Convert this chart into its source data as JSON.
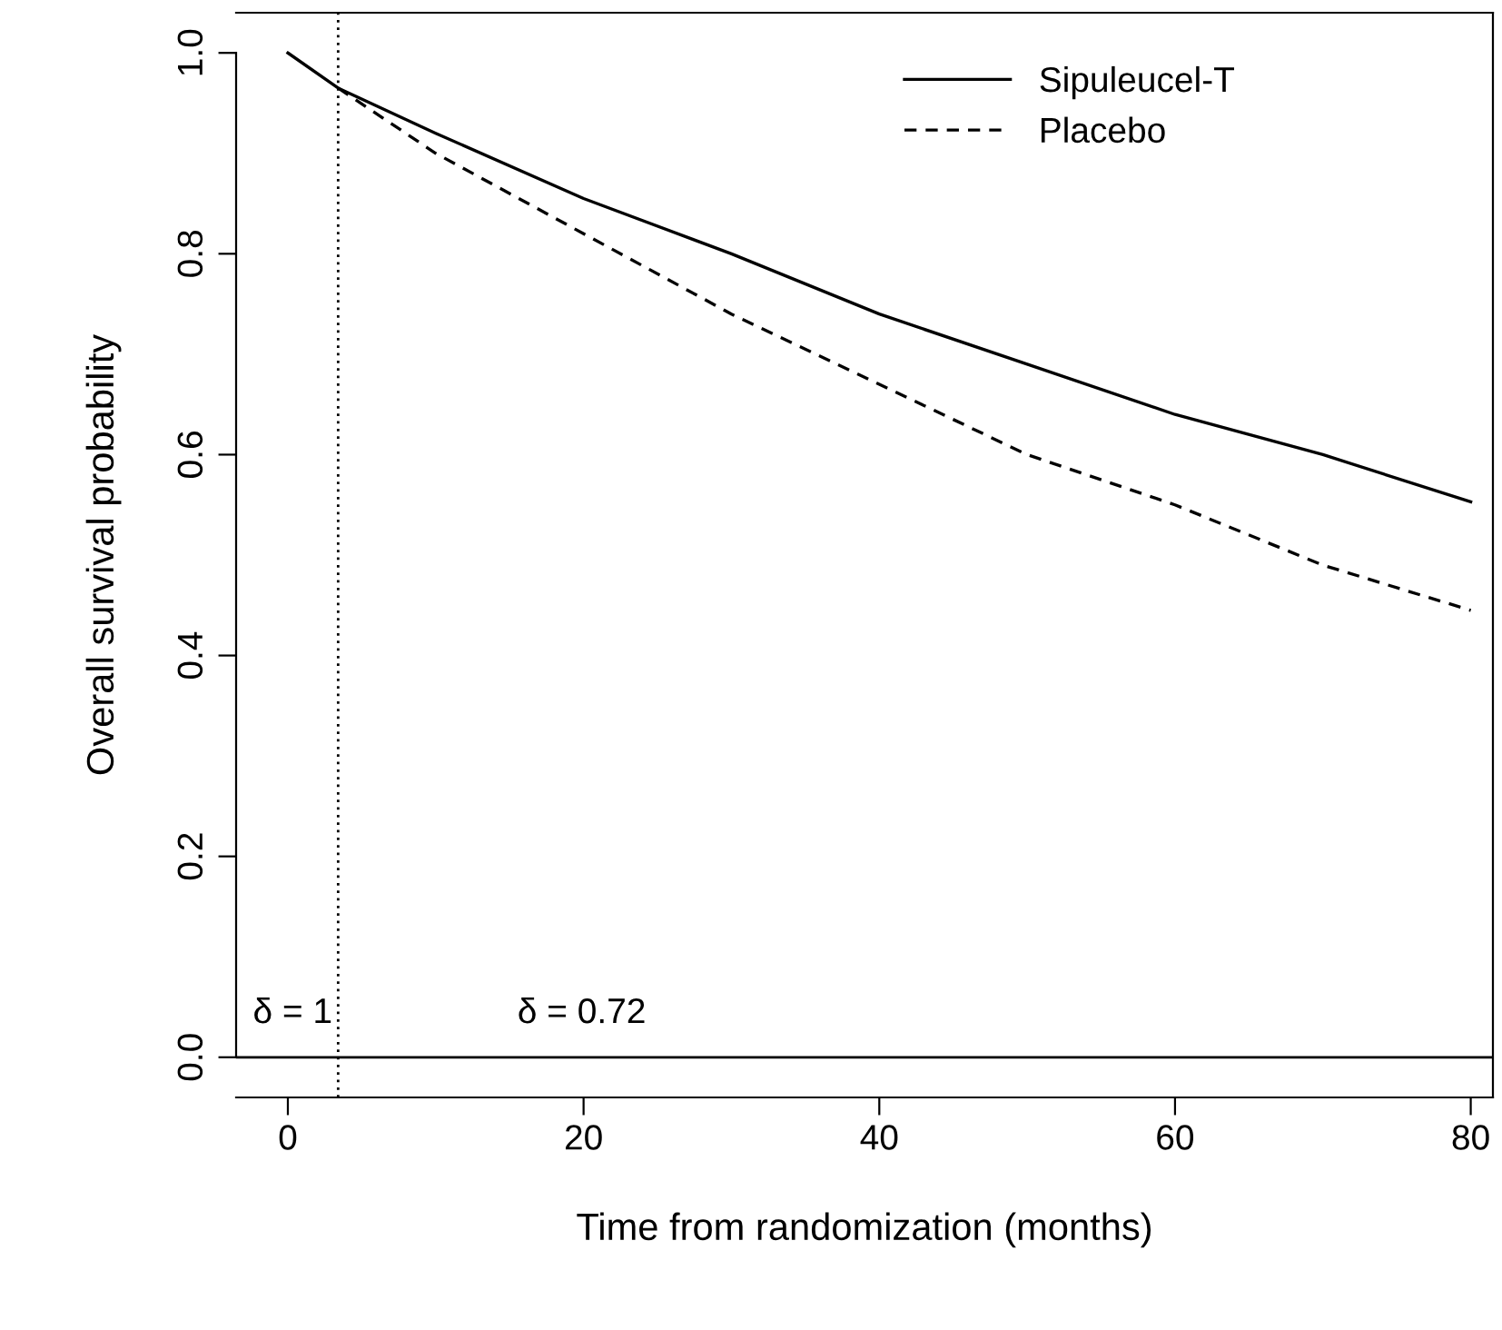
{
  "chart_data": {
    "type": "line",
    "xlabel": "Time from randomization (months)",
    "ylabel": "Overall survival probability",
    "xlim": [
      -3.5,
      81.5
    ],
    "ylim": [
      -0.04,
      1.04
    ],
    "xticks": [
      0,
      20,
      40,
      60,
      80
    ],
    "yticks": [
      {
        "value": 0,
        "label": "0.0"
      },
      {
        "value": 0.2,
        "label": "0.2"
      },
      {
        "value": 0.4,
        "label": "0.4"
      },
      {
        "value": 0.6,
        "label": "0.6"
      },
      {
        "value": 0.8,
        "label": "0.8"
      },
      {
        "value": 1,
        "label": "1.0"
      }
    ],
    "series": [
      {
        "name": "Sipuleucel-T",
        "color": "#000000",
        "line_style": "solid",
        "x": [
          0,
          3.4,
          10,
          20,
          30,
          40,
          50,
          60,
          70,
          80
        ],
        "values": [
          1.0,
          0.965,
          0.92,
          0.855,
          0.8,
          0.74,
          0.69,
          0.64,
          0.6,
          0.553
        ]
      },
      {
        "name": "Placebo",
        "color": "#000000",
        "line_style": "dashed",
        "x": [
          3.4,
          10,
          20,
          30,
          40,
          50,
          60,
          70,
          80
        ],
        "values": [
          0.965,
          0.9,
          0.82,
          0.74,
          0.67,
          0.6,
          0.55,
          0.49,
          0.445
        ]
      }
    ],
    "ref_lines": [
      {
        "axis": "x",
        "value": 3.4,
        "line_style": "dotted",
        "color": "#000000"
      },
      {
        "axis": "y",
        "value": 0,
        "line_style": "solid",
        "color": "#000000"
      }
    ],
    "annotations": [
      "δ = 1",
      "δ = 0.72"
    ],
    "legend": "top right",
    "grid": false,
    "marker": "none"
  }
}
